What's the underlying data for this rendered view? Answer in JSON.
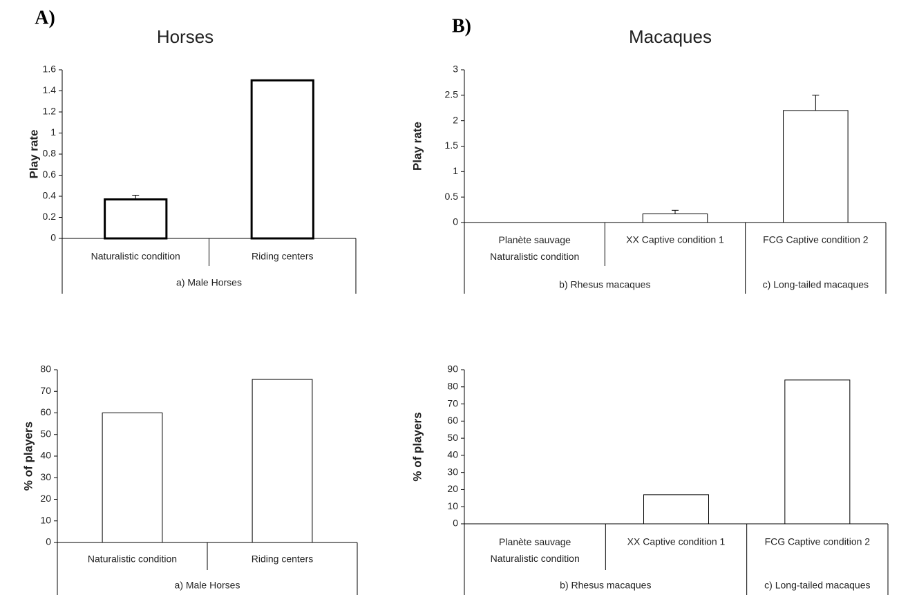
{
  "chart_data": [
    {
      "type": "bar",
      "panel_label": "A)",
      "title": "Horses",
      "y_label": "Play rate",
      "categories": [
        "Naturalistic condition",
        "Riding centers"
      ],
      "groups": [
        {
          "label": "a) Male Horses",
          "count": 2
        }
      ],
      "values": [
        0.37,
        1.5
      ],
      "errors": [
        0.04,
        null
      ],
      "color": "#ffffff",
      "edge_color": "#000000",
      "ylim": [
        0,
        1.6
      ],
      "yticks": [
        0,
        0.2,
        0.4,
        0.6,
        0.8,
        1,
        1.2,
        1.4,
        1.6
      ],
      "grid": false
    },
    {
      "type": "bar",
      "panel_label": "B)",
      "title": "Macaques",
      "y_label": "Play rate",
      "categories": [
        "Planète sauvage\nNaturalistic condition",
        "XX Captive condition 1",
        "FCG Captive condition 2"
      ],
      "groups": [
        {
          "label": "b) Rhesus macaques",
          "count": 2
        },
        {
          "label": "c) Long-tailed macaques",
          "count": 1
        }
      ],
      "values": [
        0,
        0.17,
        2.2
      ],
      "errors": [
        null,
        0.07,
        0.3
      ],
      "color": "#ffffff",
      "edge_color": "#000000",
      "ylim": [
        0,
        3
      ],
      "yticks": [
        0,
        0.5,
        1,
        1.5,
        2,
        2.5,
        3
      ],
      "grid": false
    },
    {
      "type": "bar",
      "y_label": "% of players",
      "categories": [
        "Naturalistic condition",
        "Riding centers"
      ],
      "groups": [
        {
          "label": "a) Male Horses",
          "count": 2
        }
      ],
      "values": [
        60,
        75.5
      ],
      "color": "#ffffff",
      "edge_color": "#000000",
      "ylim": [
        0,
        80
      ],
      "yticks": [
        0,
        10,
        20,
        30,
        40,
        50,
        60,
        70,
        80
      ],
      "grid": false
    },
    {
      "type": "bar",
      "y_label": "% of players",
      "categories": [
        "Planète sauvage\nNaturalistic condition",
        "XX Captive condition 1",
        "FCG Captive condition 2"
      ],
      "groups": [
        {
          "label": "b) Rhesus macaques",
          "count": 2
        },
        {
          "label": "c) Long-tailed macaques",
          "count": 1
        }
      ],
      "values": [
        0,
        17,
        84
      ],
      "color": "#ffffff",
      "edge_color": "#000000",
      "ylim": [
        0,
        90
      ],
      "yticks": [
        0,
        10,
        20,
        30,
        40,
        50,
        60,
        70,
        80,
        90
      ],
      "grid": false
    }
  ]
}
